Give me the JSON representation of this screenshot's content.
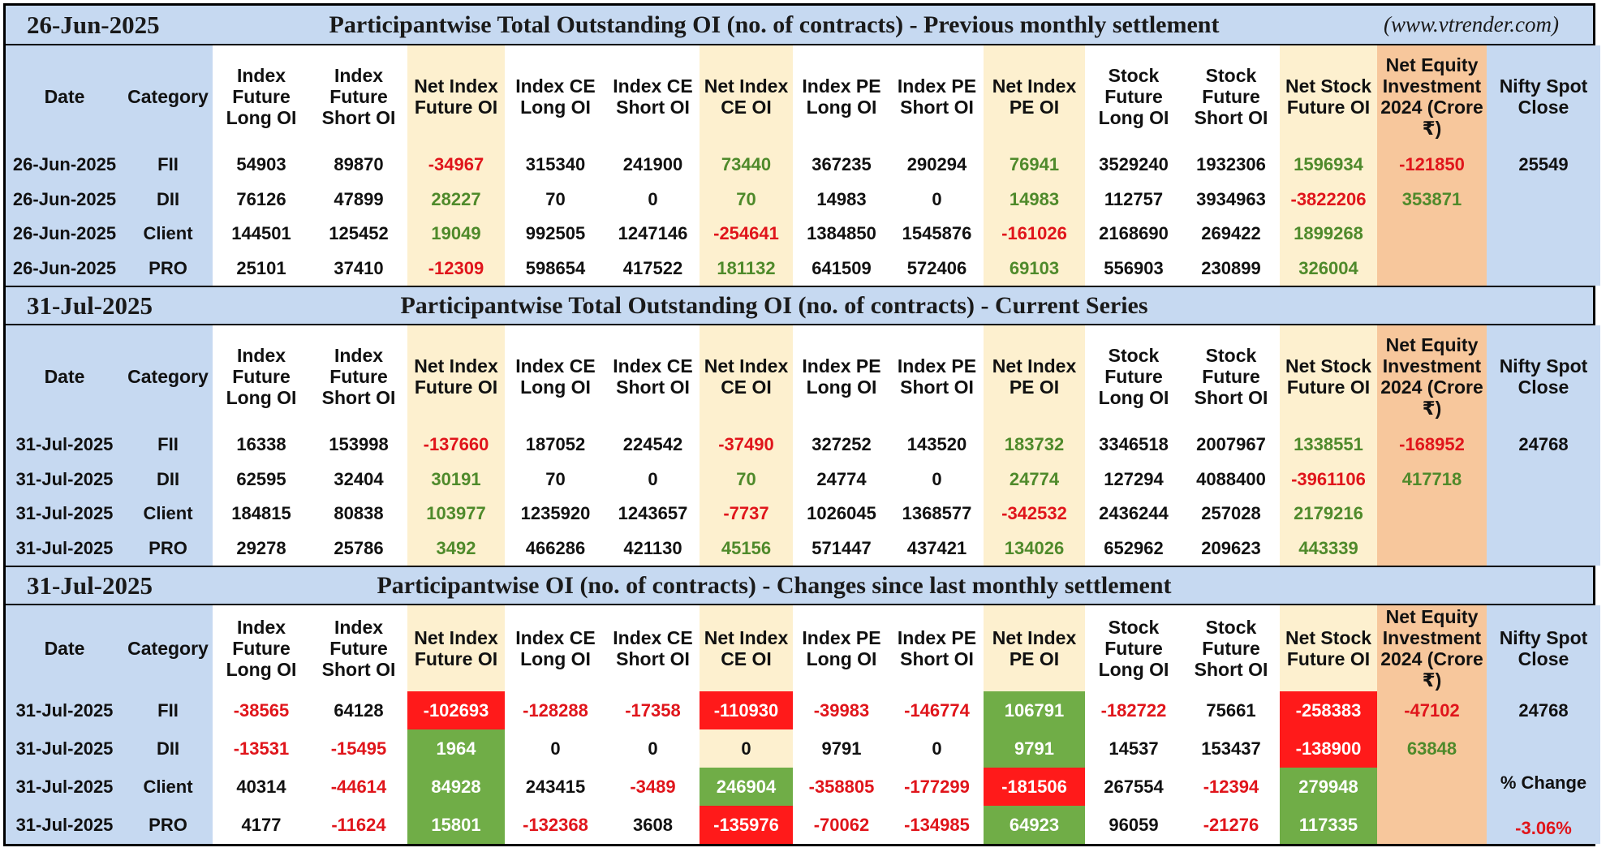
{
  "site": "(www.vtrender.com)",
  "headers": [
    "Date",
    "Category",
    "Index Future Long OI",
    "Index Future Short OI",
    "Net Index Future OI",
    "Index CE Long OI",
    "Index CE Short OI",
    "Net Index CE OI",
    "Index PE Long OI",
    "Index PE Short OI",
    "Net Index PE OI",
    "Stock Future Long OI",
    "Stock Future Short OI",
    "Net Stock Future OI",
    "Net Equity Investment 2024 (Crore ₹)",
    "Nifty Spot Close"
  ],
  "sections": [
    {
      "date": "26-Jun-2025",
      "title": "Participantwise Total Outstanding OI (no. of contracts) - Previous monthly settlement",
      "rows": [
        [
          "26-Jun-2025",
          "FII",
          "54903",
          "89870",
          "-34967",
          "315340",
          "241900",
          "73440",
          "367235",
          "290294",
          "76941",
          "3529240",
          "1932306",
          "1596934",
          "-121850",
          "25549"
        ],
        [
          "26-Jun-2025",
          "DII",
          "76126",
          "47899",
          "28227",
          "70",
          "0",
          "70",
          "14983",
          "0",
          "14983",
          "112757",
          "3934963",
          "-3822206",
          "353871",
          ""
        ],
        [
          "26-Jun-2025",
          "Client",
          "144501",
          "125452",
          "19049",
          "992505",
          "1247146",
          "-254641",
          "1384850",
          "1545876",
          "-161026",
          "2168690",
          "269422",
          "1899268",
          "",
          ""
        ],
        [
          "26-Jun-2025",
          "PRO",
          "25101",
          "37410",
          "-12309",
          "598654",
          "417522",
          "181132",
          "641509",
          "572406",
          "69103",
          "556903",
          "230899",
          "326004",
          "",
          ""
        ]
      ]
    },
    {
      "date": "31-Jul-2025",
      "title": "Participantwise Total Outstanding OI (no. of contracts) - Current Series",
      "rows": [
        [
          "31-Jul-2025",
          "FII",
          "16338",
          "153998",
          "-137660",
          "187052",
          "224542",
          "-37490",
          "327252",
          "143520",
          "183732",
          "3346518",
          "2007967",
          "1338551",
          "-168952",
          "24768"
        ],
        [
          "31-Jul-2025",
          "DII",
          "62595",
          "32404",
          "30191",
          "70",
          "0",
          "70",
          "24774",
          "0",
          "24774",
          "127294",
          "4088400",
          "-3961106",
          "417718",
          ""
        ],
        [
          "31-Jul-2025",
          "Client",
          "184815",
          "80838",
          "103977",
          "1235920",
          "1243657",
          "-7737",
          "1026045",
          "1368577",
          "-342532",
          "2436244",
          "257028",
          "2179216",
          "",
          ""
        ],
        [
          "31-Jul-2025",
          "PRO",
          "29278",
          "25786",
          "3492",
          "466286",
          "421130",
          "45156",
          "571447",
          "437421",
          "134026",
          "652962",
          "209623",
          "443339",
          "",
          ""
        ]
      ]
    },
    {
      "date": "31-Jul-2025",
      "title": "Participantwise OI (no. of contracts) - Changes since last monthly settlement",
      "rows": [
        [
          "31-Jul-2025",
          "FII",
          "-38565",
          "64128",
          "-102693",
          "-128288",
          "-17358",
          "-110930",
          "-39983",
          "-146774",
          "106791",
          "-182722",
          "75661",
          "-258383",
          "-47102",
          "24768"
        ],
        [
          "31-Jul-2025",
          "DII",
          "-13531",
          "-15495",
          "1964",
          "0",
          "0",
          "0",
          "9791",
          "0",
          "9791",
          "14537",
          "153437",
          "-138900",
          "63848",
          ""
        ],
        [
          "31-Jul-2025",
          "Client",
          "40314",
          "-44614",
          "84928",
          "243415",
          "-3489",
          "246904",
          "-358805",
          "-177299",
          "-181506",
          "267554",
          "-12394",
          "279948",
          "",
          ""
        ],
        [
          "31-Jul-2025",
          "PRO",
          "4177",
          "-11624",
          "15801",
          "-132368",
          "3608",
          "-135976",
          "-70062",
          "-134985",
          "64923",
          "96059",
          "-21276",
          "117335",
          "",
          ""
        ]
      ],
      "nifty_note": "% Change",
      "nifty_pct": "-3.06%"
    }
  ]
}
